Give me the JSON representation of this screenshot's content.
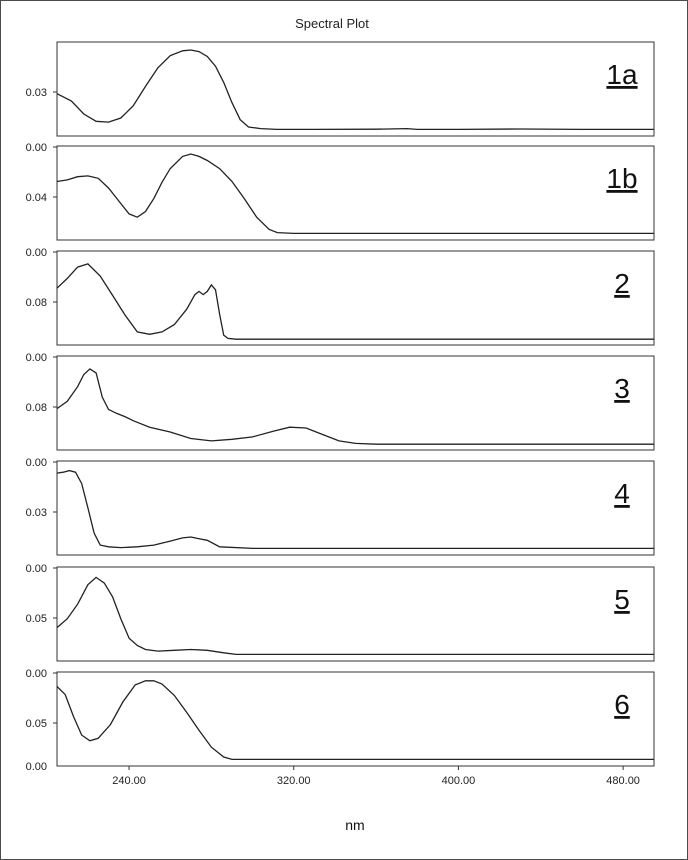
{
  "chart_data": {
    "type": "line",
    "title": "Spectral Plot",
    "xlabel": "nm",
    "xlim": [
      205,
      495
    ],
    "x_ticks": [
      240,
      320,
      400,
      480
    ],
    "x_tick_labels": [
      "240.00",
      "320.00",
      "400.00",
      "480.00"
    ],
    "panels": [
      {
        "name": "1a",
        "y_tick_labels": [
          "0.03"
        ],
        "x": [
          205,
          212,
          218,
          224,
          230,
          236,
          242,
          248,
          254,
          260,
          266,
          270,
          274,
          278,
          282,
          286,
          290,
          294,
          298,
          304,
          312,
          330,
          360,
          375,
          380,
          400,
          430,
          460,
          480,
          495
        ],
        "y": [
          0.46,
          0.37,
          0.21,
          0.12,
          0.11,
          0.16,
          0.31,
          0.55,
          0.78,
          0.93,
          0.99,
          1.0,
          0.98,
          0.92,
          0.8,
          0.6,
          0.35,
          0.14,
          0.05,
          0.03,
          0.02,
          0.02,
          0.022,
          0.03,
          0.02,
          0.02,
          0.025,
          0.02,
          0.02,
          0.02
        ]
      },
      {
        "name": "1b",
        "y_tick_labels": [
          "0.00",
          "0.04"
        ],
        "x": [
          205,
          210,
          215,
          220,
          225,
          230,
          235,
          240,
          244,
          248,
          252,
          256,
          260,
          266,
          270,
          274,
          278,
          284,
          290,
          296,
          302,
          308,
          312,
          320,
          340,
          380,
          420,
          460,
          495
        ],
        "y": [
          0.66,
          0.68,
          0.72,
          0.73,
          0.7,
          0.58,
          0.42,
          0.26,
          0.22,
          0.29,
          0.45,
          0.65,
          0.82,
          0.97,
          1.0,
          0.97,
          0.92,
          0.82,
          0.66,
          0.45,
          0.22,
          0.07,
          0.03,
          0.02,
          0.02,
          0.02,
          0.02,
          0.02,
          0.02
        ]
      },
      {
        "name": "2",
        "y_tick_labels": [
          "0.00",
          "0.08"
        ],
        "x": [
          205,
          210,
          215,
          220,
          226,
          232,
          238,
          244,
          250,
          256,
          262,
          268,
          272,
          274,
          276,
          278,
          280,
          282,
          284,
          286,
          288,
          292,
          300,
          340,
          400,
          460,
          495
        ],
        "y": [
          0.64,
          0.76,
          0.9,
          0.94,
          0.79,
          0.55,
          0.31,
          0.1,
          0.07,
          0.1,
          0.19,
          0.38,
          0.56,
          0.6,
          0.56,
          0.6,
          0.68,
          0.62,
          0.32,
          0.06,
          0.02,
          0.01,
          0.01,
          0.01,
          0.01,
          0.01,
          0.01
        ]
      },
      {
        "name": "3",
        "y_tick_labels": [
          "0.00",
          "0.08"
        ],
        "x": [
          205,
          210,
          215,
          218,
          221,
          224,
          227,
          230,
          234,
          238,
          242,
          250,
          260,
          270,
          280,
          290,
          300,
          310,
          318,
          326,
          334,
          342,
          350,
          360,
          400,
          440,
          480,
          495
        ],
        "y": [
          0.45,
          0.54,
          0.72,
          0.87,
          0.94,
          0.89,
          0.59,
          0.44,
          0.39,
          0.35,
          0.3,
          0.22,
          0.16,
          0.08,
          0.05,
          0.07,
          0.1,
          0.17,
          0.22,
          0.21,
          0.13,
          0.05,
          0.02,
          0.01,
          0.01,
          0.01,
          0.01,
          0.01
        ]
      },
      {
        "name": "4",
        "y_tick_labels": [
          "0.00",
          "0.03"
        ],
        "x": [
          205,
          208,
          211,
          214,
          217,
          220,
          223,
          226,
          230,
          236,
          244,
          252,
          260,
          266,
          270,
          274,
          278,
          284,
          300,
          340,
          400,
          460,
          495
        ],
        "y": [
          0.95,
          0.96,
          0.98,
          0.96,
          0.82,
          0.52,
          0.21,
          0.06,
          0.04,
          0.03,
          0.04,
          0.06,
          0.11,
          0.15,
          0.16,
          0.14,
          0.12,
          0.04,
          0.02,
          0.02,
          0.02,
          0.02,
          0.02
        ]
      },
      {
        "name": "5",
        "y_tick_labels": [
          "0.00",
          "0.05"
        ],
        "x": [
          205,
          210,
          215,
          220,
          224,
          228,
          232,
          236,
          240,
          244,
          248,
          254,
          262,
          270,
          278,
          286,
          292,
          300,
          340,
          400,
          460,
          495
        ],
        "y": [
          0.35,
          0.46,
          0.64,
          0.88,
          0.97,
          0.9,
          0.73,
          0.46,
          0.22,
          0.13,
          0.08,
          0.06,
          0.07,
          0.08,
          0.07,
          0.04,
          0.02,
          0.02,
          0.02,
          0.02,
          0.02,
          0.02
        ]
      },
      {
        "name": "6",
        "y_tick_labels": [
          "0.00",
          "0.05"
        ],
        "x": [
          205,
          209,
          213,
          217,
          221,
          225,
          231,
          237,
          243,
          248,
          252,
          256,
          262,
          268,
          274,
          280,
          286,
          290,
          300,
          340,
          400,
          460,
          495
        ],
        "y": [
          0.92,
          0.82,
          0.55,
          0.32,
          0.25,
          0.28,
          0.45,
          0.73,
          0.94,
          0.99,
          0.99,
          0.95,
          0.81,
          0.6,
          0.38,
          0.17,
          0.05,
          0.02,
          0.02,
          0.02,
          0.02,
          0.02,
          0.02
        ]
      }
    ]
  }
}
